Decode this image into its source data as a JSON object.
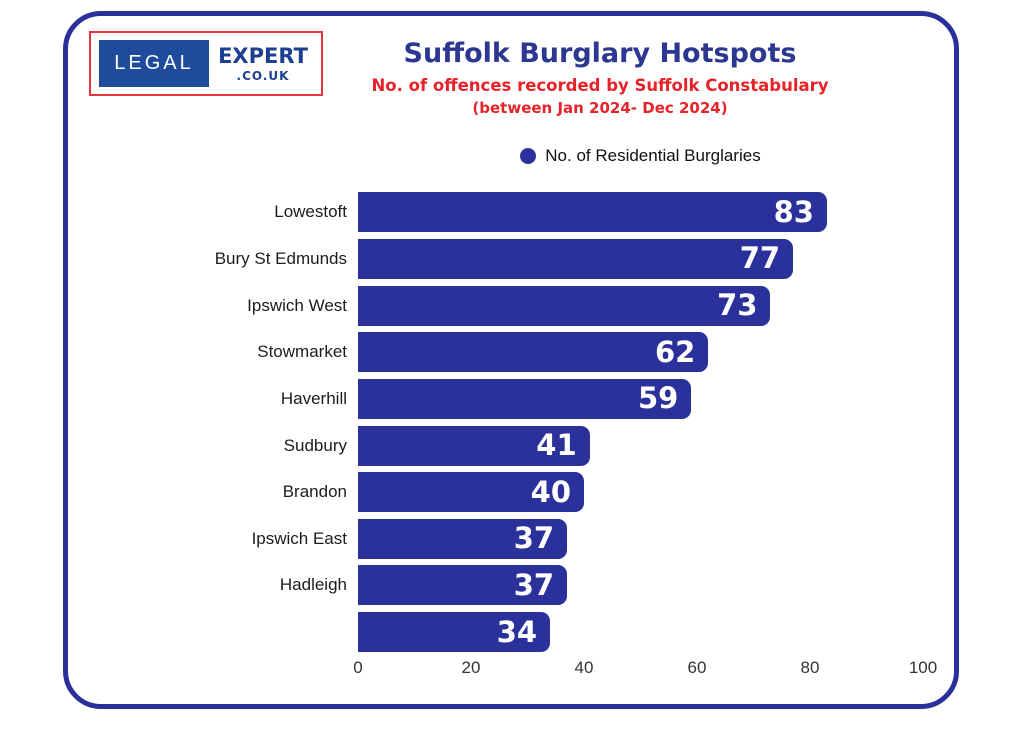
{
  "logo": {
    "primary": "LEGAL",
    "secondary": "EXPERT",
    "tertiary": ".CO.UK"
  },
  "header": {
    "title": "Suffolk Burglary Hotspots",
    "subtitle_line1": "No. of offences recorded by Suffolk Constabulary",
    "subtitle_line2": "(between Jan 2024- Dec 2024)"
  },
  "legend": {
    "label": "No. of Residential Burglaries"
  },
  "chart_data": {
    "type": "bar",
    "orientation": "horizontal",
    "title": "Suffolk Burglary Hotspots",
    "subtitle": "No. of offences recorded by Suffolk Constabulary (between Jan 2024- Dec 2024)",
    "series_name": "No. of Residential Burglaries",
    "categories": [
      "Lowestoft",
      "Bury St Edmunds",
      "Ipswich West",
      "Stowmarket",
      "Haverhill",
      "Sudbury",
      "Brandon",
      "Ipswich East",
      "Hadleigh",
      ""
    ],
    "values": [
      83,
      77,
      73,
      62,
      59,
      41,
      40,
      37,
      37,
      34
    ],
    "xlabel": "",
    "ylabel": "",
    "xlim": [
      0,
      100
    ],
    "x_ticks": [
      0,
      20,
      40,
      60,
      80,
      100
    ],
    "grid": false,
    "legend_position": "top",
    "bar_color": "#2b319b",
    "value_label_color": "#ffffff"
  },
  "colors": {
    "frame_border": "#2a2f9c",
    "bar": "#2b319b",
    "value_text": "#ffffff",
    "title": "#2c3792",
    "subtitle": "#e62329",
    "logo_border": "#e8343a",
    "logo_box": "#1f4b9c",
    "logo_text": "#1c3f8f",
    "category_text": "#1c1c1c",
    "axis_text": "#333333",
    "legend_text": "#111111"
  }
}
